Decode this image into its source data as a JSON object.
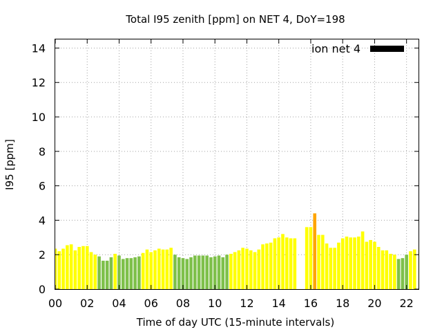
{
  "chart_data": {
    "type": "bar",
    "title": "Total I95 zenith [ppm] on NET 4, DoY=198",
    "xlabel": "Time of day UTC (15-minute intervals)",
    "ylabel": "I95 [ppm]",
    "xlim": [
      0,
      22.75
    ],
    "ylim": [
      0,
      14.5
    ],
    "x_ticks": [
      0,
      2,
      4,
      6,
      8,
      10,
      12,
      14,
      16,
      18,
      20,
      22
    ],
    "x_tick_labels": [
      "00",
      "02",
      "04",
      "06",
      "08",
      "10",
      "12",
      "14",
      "16",
      "18",
      "20",
      "22"
    ],
    "y_ticks": [
      0,
      2,
      4,
      6,
      8,
      10,
      12,
      14
    ],
    "y_tick_labels": [
      "0",
      "2",
      "4",
      "6",
      "8",
      "10",
      "12",
      "14"
    ],
    "grid": true,
    "legend": {
      "label": "ion net 4",
      "placement": "top-right"
    },
    "bar_width_hours": 0.2,
    "colors": {
      "green": "#7ec04a",
      "yellow": "#ffff00",
      "orange": "#ffa500",
      "legend": "#000000"
    },
    "bars": [
      {
        "x": 0.0,
        "y": 2.35,
        "c": "yellow"
      },
      {
        "x": 0.25,
        "y": 2.2,
        "c": "yellow"
      },
      {
        "x": 0.5,
        "y": 2.35,
        "c": "yellow"
      },
      {
        "x": 0.75,
        "y": 2.55,
        "c": "yellow"
      },
      {
        "x": 1.0,
        "y": 2.6,
        "c": "yellow"
      },
      {
        "x": 1.25,
        "y": 2.25,
        "c": "yellow"
      },
      {
        "x": 1.5,
        "y": 2.45,
        "c": "yellow"
      },
      {
        "x": 1.75,
        "y": 2.5,
        "c": "yellow"
      },
      {
        "x": 2.0,
        "y": 2.5,
        "c": "yellow"
      },
      {
        "x": 2.25,
        "y": 2.15,
        "c": "yellow"
      },
      {
        "x": 2.5,
        "y": 2.0,
        "c": "yellow"
      },
      {
        "x": 2.75,
        "y": 1.9,
        "c": "green"
      },
      {
        "x": 3.0,
        "y": 1.65,
        "c": "green"
      },
      {
        "x": 3.25,
        "y": 1.65,
        "c": "green"
      },
      {
        "x": 3.5,
        "y": 1.85,
        "c": "green"
      },
      {
        "x": 3.75,
        "y": 2.05,
        "c": "yellow"
      },
      {
        "x": 4.0,
        "y": 1.95,
        "c": "green"
      },
      {
        "x": 4.25,
        "y": 1.75,
        "c": "green"
      },
      {
        "x": 4.5,
        "y": 1.8,
        "c": "green"
      },
      {
        "x": 4.75,
        "y": 1.8,
        "c": "green"
      },
      {
        "x": 5.0,
        "y": 1.85,
        "c": "green"
      },
      {
        "x": 5.25,
        "y": 1.9,
        "c": "green"
      },
      {
        "x": 5.5,
        "y": 2.1,
        "c": "yellow"
      },
      {
        "x": 5.75,
        "y": 2.3,
        "c": "yellow"
      },
      {
        "x": 6.0,
        "y": 2.15,
        "c": "yellow"
      },
      {
        "x": 6.25,
        "y": 2.25,
        "c": "yellow"
      },
      {
        "x": 6.5,
        "y": 2.35,
        "c": "yellow"
      },
      {
        "x": 6.75,
        "y": 2.3,
        "c": "yellow"
      },
      {
        "x": 7.0,
        "y": 2.3,
        "c": "yellow"
      },
      {
        "x": 7.25,
        "y": 2.4,
        "c": "yellow"
      },
      {
        "x": 7.5,
        "y": 2.0,
        "c": "green"
      },
      {
        "x": 7.75,
        "y": 1.85,
        "c": "green"
      },
      {
        "x": 8.0,
        "y": 1.8,
        "c": "green"
      },
      {
        "x": 8.25,
        "y": 1.75,
        "c": "green"
      },
      {
        "x": 8.5,
        "y": 1.85,
        "c": "green"
      },
      {
        "x": 8.75,
        "y": 1.95,
        "c": "green"
      },
      {
        "x": 9.0,
        "y": 1.95,
        "c": "green"
      },
      {
        "x": 9.25,
        "y": 1.95,
        "c": "green"
      },
      {
        "x": 9.5,
        "y": 1.95,
        "c": "green"
      },
      {
        "x": 9.75,
        "y": 1.85,
        "c": "green"
      },
      {
        "x": 10.0,
        "y": 1.9,
        "c": "green"
      },
      {
        "x": 10.25,
        "y": 1.95,
        "c": "green"
      },
      {
        "x": 10.5,
        "y": 1.85,
        "c": "green"
      },
      {
        "x": 10.75,
        "y": 2.0,
        "c": "green"
      },
      {
        "x": 11.0,
        "y": 2.05,
        "c": "yellow"
      },
      {
        "x": 11.25,
        "y": 2.15,
        "c": "yellow"
      },
      {
        "x": 11.5,
        "y": 2.25,
        "c": "yellow"
      },
      {
        "x": 11.75,
        "y": 2.4,
        "c": "yellow"
      },
      {
        "x": 12.0,
        "y": 2.35,
        "c": "yellow"
      },
      {
        "x": 12.25,
        "y": 2.25,
        "c": "yellow"
      },
      {
        "x": 12.5,
        "y": 2.15,
        "c": "yellow"
      },
      {
        "x": 12.75,
        "y": 2.3,
        "c": "yellow"
      },
      {
        "x": 13.0,
        "y": 2.6,
        "c": "yellow"
      },
      {
        "x": 13.25,
        "y": 2.65,
        "c": "yellow"
      },
      {
        "x": 13.5,
        "y": 2.7,
        "c": "yellow"
      },
      {
        "x": 13.75,
        "y": 2.95,
        "c": "yellow"
      },
      {
        "x": 14.0,
        "y": 3.0,
        "c": "yellow"
      },
      {
        "x": 14.25,
        "y": 3.2,
        "c": "yellow"
      },
      {
        "x": 14.5,
        "y": 3.0,
        "c": "yellow"
      },
      {
        "x": 14.75,
        "y": 2.95,
        "c": "yellow"
      },
      {
        "x": 15.0,
        "y": 2.95,
        "c": "yellow"
      },
      {
        "x": 15.75,
        "y": 3.6,
        "c": "yellow"
      },
      {
        "x": 16.0,
        "y": 3.6,
        "c": "yellow"
      },
      {
        "x": 16.25,
        "y": 4.4,
        "c": "orange"
      },
      {
        "x": 16.5,
        "y": 3.15,
        "c": "yellow"
      },
      {
        "x": 16.75,
        "y": 3.15,
        "c": "yellow"
      },
      {
        "x": 17.0,
        "y": 2.65,
        "c": "yellow"
      },
      {
        "x": 17.25,
        "y": 2.4,
        "c": "yellow"
      },
      {
        "x": 17.5,
        "y": 2.4,
        "c": "yellow"
      },
      {
        "x": 17.75,
        "y": 2.7,
        "c": "yellow"
      },
      {
        "x": 18.0,
        "y": 2.95,
        "c": "yellow"
      },
      {
        "x": 18.25,
        "y": 3.05,
        "c": "yellow"
      },
      {
        "x": 18.5,
        "y": 3.0,
        "c": "yellow"
      },
      {
        "x": 18.75,
        "y": 3.0,
        "c": "yellow"
      },
      {
        "x": 19.0,
        "y": 3.05,
        "c": "yellow"
      },
      {
        "x": 19.25,
        "y": 3.35,
        "c": "yellow"
      },
      {
        "x": 19.5,
        "y": 2.75,
        "c": "yellow"
      },
      {
        "x": 19.75,
        "y": 2.85,
        "c": "yellow"
      },
      {
        "x": 20.0,
        "y": 2.75,
        "c": "yellow"
      },
      {
        "x": 20.25,
        "y": 2.45,
        "c": "yellow"
      },
      {
        "x": 20.5,
        "y": 2.25,
        "c": "yellow"
      },
      {
        "x": 20.75,
        "y": 2.25,
        "c": "yellow"
      },
      {
        "x": 21.0,
        "y": 2.05,
        "c": "yellow"
      },
      {
        "x": 21.25,
        "y": 2.0,
        "c": "yellow"
      },
      {
        "x": 21.5,
        "y": 1.75,
        "c": "green"
      },
      {
        "x": 21.75,
        "y": 1.8,
        "c": "green"
      },
      {
        "x": 22.0,
        "y": 2.0,
        "c": "green"
      },
      {
        "x": 22.25,
        "y": 2.2,
        "c": "yellow"
      },
      {
        "x": 22.5,
        "y": 2.3,
        "c": "yellow"
      }
    ]
  }
}
